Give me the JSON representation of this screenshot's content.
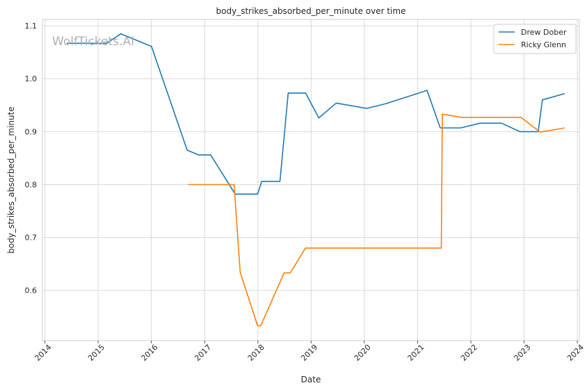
{
  "watermark": "WolfTickets.AI",
  "chart_data": {
    "type": "line",
    "title": "body_strikes_absorbed_per_minute over time",
    "xlabel": "Date",
    "ylabel": "body_strikes_absorbed_per_minute",
    "x_type": "date",
    "xlim": [
      "2013-12-15",
      "2024-01-15"
    ],
    "ylim": [
      0.505,
      1.112
    ],
    "x_ticks": [
      "2014",
      "2015",
      "2016",
      "2017",
      "2018",
      "2019",
      "2020",
      "2021",
      "2022",
      "2023",
      "2024"
    ],
    "y_ticks": [
      0.6,
      0.7,
      0.8,
      0.9,
      1.0,
      1.1
    ],
    "y_tick_labels": [
      "0.6",
      "0.7",
      "0.8",
      "0.9",
      "1.0",
      "1.1"
    ],
    "grid": true,
    "legend_position": "top-right",
    "series": [
      {
        "name": "Drew Dober",
        "color": "#1f77b4",
        "points": [
          [
            "2014-05-31",
            1.067
          ],
          [
            "2014-10-15",
            1.067
          ],
          [
            "2015-02-28",
            1.067
          ],
          [
            "2015-06-06",
            1.085
          ],
          [
            "2016-01-02",
            1.061
          ],
          [
            "2016-09-03",
            0.865
          ],
          [
            "2016-11-19",
            0.856
          ],
          [
            "2017-02-11",
            0.856
          ],
          [
            "2017-07-29",
            0.782
          ],
          [
            "2017-12-30",
            0.782
          ],
          [
            "2018-01-27",
            0.806
          ],
          [
            "2018-06-01",
            0.806
          ],
          [
            "2018-07-28",
            0.973
          ],
          [
            "2018-11-24",
            0.973
          ],
          [
            "2019-02-23",
            0.926
          ],
          [
            "2019-06-22",
            0.954
          ],
          [
            "2020-01-18",
            0.944
          ],
          [
            "2020-05-30",
            0.953
          ],
          [
            "2021-03-06",
            0.978
          ],
          [
            "2021-06-05",
            0.907
          ],
          [
            "2021-10-23",
            0.907
          ],
          [
            "2022-03-05",
            0.916
          ],
          [
            "2022-07-30",
            0.916
          ],
          [
            "2022-12-03",
            0.9
          ],
          [
            "2023-04-08",
            0.9
          ],
          [
            "2023-05-06",
            0.96
          ],
          [
            "2023-10-07",
            0.972
          ]
        ]
      },
      {
        "name": "Ricky Glenn",
        "color": "#ff7f0e",
        "points": [
          [
            "2016-09-10",
            0.8
          ],
          [
            "2017-02-18",
            0.8
          ],
          [
            "2017-07-22",
            0.8
          ],
          [
            "2017-09-02",
            0.634
          ],
          [
            "2017-12-30",
            0.533
          ],
          [
            "2018-01-20",
            0.533
          ],
          [
            "2018-06-30",
            0.633
          ],
          [
            "2018-08-11",
            0.633
          ],
          [
            "2018-11-24",
            0.68
          ],
          [
            "2019-06-01",
            0.68
          ],
          [
            "2020-02-15",
            0.68
          ],
          [
            "2020-12-12",
            0.68
          ],
          [
            "2021-06-12",
            0.68
          ],
          [
            "2021-06-19",
            0.933
          ],
          [
            "2021-10-30",
            0.927
          ],
          [
            "2022-05-07",
            0.927
          ],
          [
            "2022-12-10",
            0.927
          ],
          [
            "2023-04-22",
            0.899
          ],
          [
            "2023-10-07",
            0.907
          ]
        ]
      }
    ]
  }
}
